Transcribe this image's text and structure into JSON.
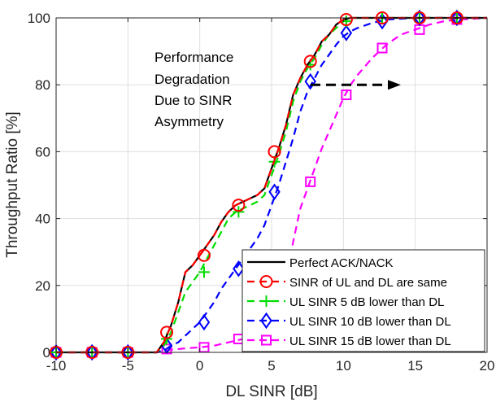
{
  "chart_data": {
    "type": "line",
    "xlabel": "DL SINR [dB]",
    "ylabel": "Throughput Ratio [%]",
    "xlim": [
      -10,
      20
    ],
    "ylim": [
      0,
      100
    ],
    "xticks": [
      -10,
      -5,
      0,
      5,
      10,
      15,
      20
    ],
    "yticks": [
      0,
      20,
      40,
      60,
      80,
      100
    ],
    "xtick_labels": [
      "-10",
      "-5",
      "0",
      "5",
      "10",
      "15",
      "20"
    ],
    "ytick_labels": [
      "0",
      "20",
      "40",
      "60",
      "80",
      "100"
    ],
    "grid": true,
    "legend_position": "bottom-right",
    "annotation": {
      "lines": [
        "Performance",
        "Degradation",
        "Due to  SINR",
        "Asymmetry"
      ],
      "arrow": {
        "from": [
          8,
          80
        ],
        "to": [
          14,
          80
        ]
      }
    },
    "series": [
      {
        "name": "Perfect ACK/NACK",
        "color": "#000000",
        "dash": "solid",
        "marker": "none",
        "x": [
          -10,
          -6,
          -3,
          -2.5,
          -2,
          -1.5,
          -1,
          -0.5,
          0,
          0.5,
          1,
          1.5,
          2,
          2.5,
          3,
          3.5,
          4,
          4.5,
          5,
          5.5,
          6,
          6.5,
          7,
          7.5,
          8,
          8.5,
          9,
          9.5,
          10,
          10.5,
          12,
          15,
          20
        ],
        "y": [
          0,
          0,
          0,
          3,
          8,
          15,
          24,
          26,
          29,
          32,
          35,
          39,
          42,
          44,
          45,
          46,
          47,
          49,
          55,
          61,
          68,
          77,
          82,
          86,
          89,
          93,
          95,
          98,
          99.5,
          100,
          100,
          100,
          100
        ]
      },
      {
        "name": "SINR of UL and DL are same",
        "color": "#ff0000",
        "dash": "dashed",
        "marker": "circle",
        "x": [
          -10,
          -6,
          -3,
          -2.5,
          -2,
          -1.5,
          -1,
          -0.5,
          0,
          0.5,
          1,
          1.5,
          2,
          2.5,
          3,
          3.5,
          4,
          4.5,
          5,
          5.5,
          6,
          6.5,
          7,
          7.5,
          8,
          8.5,
          9,
          9.5,
          10,
          10.5,
          12,
          15,
          20
        ],
        "y": [
          0,
          0,
          0,
          3,
          8,
          15,
          24,
          26,
          29,
          32,
          35,
          39,
          42,
          44,
          45,
          46,
          47,
          49,
          55,
          61,
          68,
          77,
          82,
          86,
          89,
          93,
          95,
          98,
          99.5,
          100,
          100,
          100,
          100
        ],
        "marker_x": [
          -10,
          -7.5,
          -5,
          -2.3,
          0.3,
          2.7,
          5.2,
          7.7,
          10.2,
          12.7,
          15.3,
          17.9
        ],
        "marker_y": [
          0,
          0,
          0,
          6,
          29,
          44,
          60,
          87,
          99.5,
          100,
          100,
          100
        ]
      },
      {
        "name": "UL SINR 5 dB lower than DL",
        "color": "#00dd00",
        "dash": "dashed",
        "marker": "plus",
        "x": [
          -10,
          -6,
          -3,
          -2.5,
          -2,
          -1.5,
          -1,
          -0.5,
          0,
          0.5,
          1,
          1.5,
          2,
          2.5,
          3,
          3.5,
          4,
          4.5,
          5,
          5.5,
          6,
          6.5,
          7,
          7.5,
          8,
          8.5,
          9,
          9.5,
          10,
          10.5,
          12,
          15,
          20
        ],
        "y": [
          0,
          0,
          0,
          2,
          6,
          12,
          18,
          21,
          24,
          28,
          32,
          36,
          40,
          42,
          43,
          44,
          45,
          47,
          53,
          59,
          66,
          75,
          81,
          85,
          88,
          92,
          95,
          97,
          99,
          100,
          100,
          100,
          100
        ],
        "marker_x": [
          -10,
          -7.5,
          -5,
          -2.3,
          0.3,
          2.7,
          5.2,
          7.7,
          10.2,
          12.7,
          15.3,
          17.9
        ],
        "marker_y": [
          0,
          0,
          0,
          4,
          24,
          42,
          57,
          86,
          99,
          100,
          100,
          100
        ]
      },
      {
        "name": "UL SINR 10 dB lower than DL",
        "color": "#0000ff",
        "dash": "dashed",
        "marker": "diamond",
        "x": [
          -10,
          -6,
          -3,
          -2.5,
          -2,
          -1.5,
          -1,
          -0.5,
          0,
          0.5,
          1,
          1.5,
          2,
          2.5,
          3,
          3.5,
          4,
          4.5,
          5,
          5.5,
          6,
          6.5,
          7,
          7.5,
          8,
          8.5,
          9,
          9.5,
          10,
          10.5,
          11,
          12,
          13,
          15,
          17,
          20
        ],
        "y": [
          0,
          0,
          0,
          0.5,
          2,
          3,
          5,
          7,
          9,
          12,
          15,
          19,
          22,
          25,
          28,
          31,
          34,
          38,
          44,
          50,
          57,
          64,
          72,
          78,
          82,
          86,
          89,
          92,
          94.5,
          96,
          97,
          98.5,
          99.5,
          100,
          100,
          100
        ],
        "marker_x": [
          -10,
          -7.5,
          -5,
          -2.3,
          0.3,
          2.7,
          5.2,
          7.7,
          10.2,
          12.7,
          15.3,
          17.9
        ],
        "marker_y": [
          0,
          0,
          0,
          2,
          9,
          25,
          48,
          81,
          95.5,
          99,
          100,
          100
        ]
      },
      {
        "name": "UL SINR 15 dB lower than DL",
        "color": "#ff00ff",
        "dash": "dashed",
        "marker": "square",
        "x": [
          -10,
          -6,
          -3,
          -2.5,
          -2,
          -1,
          0,
          1,
          2,
          3,
          4,
          5,
          5.5,
          6,
          6.5,
          7,
          7.5,
          8,
          8.5,
          9,
          9.5,
          10,
          10.5,
          11,
          12,
          13,
          14,
          15,
          16,
          17,
          18,
          20
        ],
        "y": [
          0,
          0,
          0,
          0.3,
          0.8,
          1.2,
          1.5,
          2,
          3,
          4,
          5,
          7,
          12,
          22,
          33,
          43,
          49,
          55,
          61,
          66,
          71,
          76,
          80,
          83,
          88,
          92,
          95,
          96.5,
          98,
          99,
          99.5,
          100
        ],
        "marker_x": [
          -10,
          -7.5,
          -5,
          -2.3,
          0.3,
          2.7,
          5.2,
          7.7,
          10.2,
          12.7,
          15.3,
          17.9
        ],
        "marker_y": [
          0,
          0,
          0,
          1,
          1.5,
          4,
          7,
          51,
          77,
          91,
          96.5,
          99.5
        ]
      }
    ]
  }
}
